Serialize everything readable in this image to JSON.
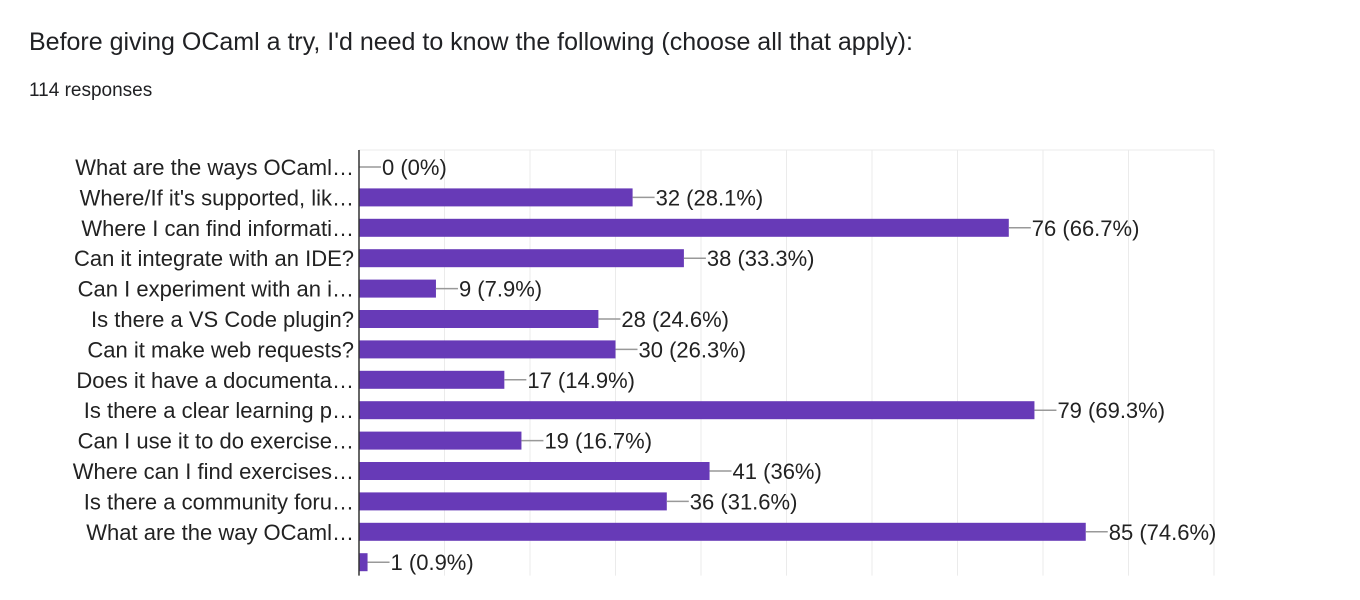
{
  "title": "Before giving OCaml a try, I'd need to know the following (choose all that apply):",
  "responses": "114 responses",
  "chart_data": {
    "type": "bar",
    "orientation": "horizontal",
    "xlim": [
      0,
      100
    ],
    "grid": true,
    "bar_color": "#673ab7",
    "categories": [
      "What are the ways OCaml…",
      "Where/If it's supported, lik…",
      "Where I can find informati…",
      "Can it integrate with an IDE?",
      "Can I experiment with an i…",
      "Is there a VS Code plugin?",
      "Can it make web requests?",
      "Does it have a documenta…",
      "Is there a clear learning p…",
      "Can I use it to do exercise…",
      "Where can I find exercises…",
      "Is there a community foru…",
      "What are the way OCaml…",
      ""
    ],
    "values": [
      0,
      32,
      76,
      38,
      9,
      28,
      30,
      17,
      79,
      19,
      41,
      36,
      85,
      1
    ],
    "data_labels": [
      "0 (0%)",
      "32 (28.1%)",
      "76 (66.7%)",
      "38 (33.3%)",
      "9 (7.9%)",
      "28 (24.6%)",
      "30 (26.3%)",
      "17 (14.9%)",
      "79 (69.3%)",
      "19 (16.7%)",
      "41 (36%)",
      "36 (31.6%)",
      "85 (74.6%)",
      "1 (0.9%)"
    ]
  }
}
